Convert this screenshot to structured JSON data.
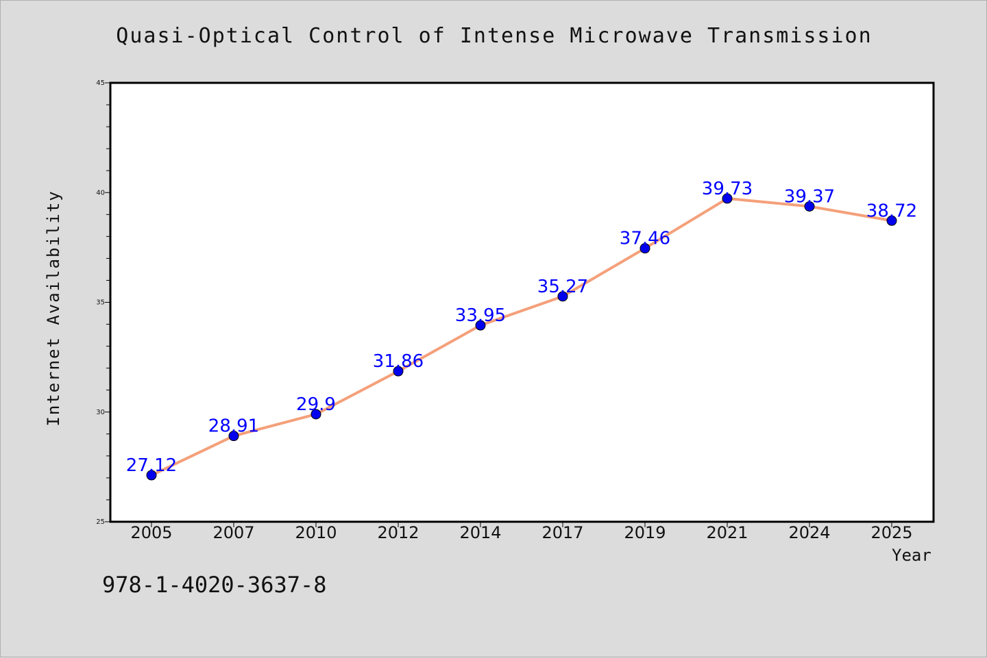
{
  "colors": {
    "background": "#dcdcdc",
    "plot_background": "#ffffff",
    "line": "#f4a07a",
    "marker": "#0000ee",
    "data_label": "#0000ff",
    "frame": "#000000"
  },
  "footer": {
    "isbn": "978-1-4020-3637-8"
  },
  "chart_data": {
    "type": "line",
    "title": "Quasi-Optical Control of Intense Microwave Transmission",
    "xlabel": "Year",
    "ylabel": "Internet Availability",
    "categories": [
      "2005",
      "2007",
      "2010",
      "2012",
      "2014",
      "2017",
      "2019",
      "2021",
      "2024",
      "2025"
    ],
    "series": [
      {
        "values": [
          27.12,
          28.91,
          29.9,
          31.86,
          33.95,
          35.27,
          37.46,
          39.73,
          39.37,
          38.72
        ],
        "labels": [
          "27.12",
          "28.91",
          "29.9",
          "31.86",
          "33.95",
          "35.27",
          "37.46",
          "39.73",
          "39.37",
          "38.72"
        ]
      }
    ],
    "ylim": [
      25,
      45
    ],
    "yticks_major": [
      25,
      30,
      35,
      40,
      45
    ],
    "ytick_minor_step": 1,
    "grid": false,
    "legend": "none"
  }
}
